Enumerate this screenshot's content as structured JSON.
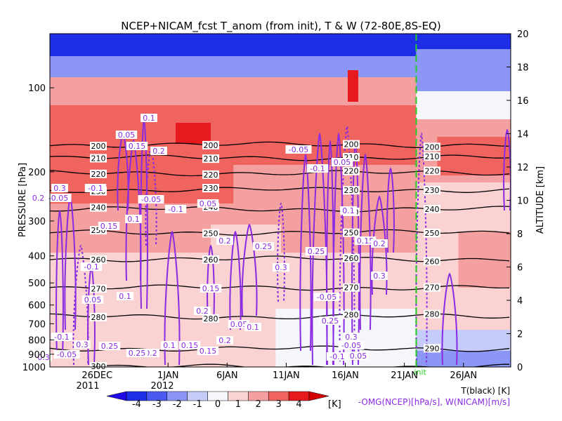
{
  "chart_data": {
    "type": "heatmap",
    "title": "NCEP+NICAM_fcst T_anom (from init), T & W  (72-80E,8S-EQ)",
    "ylabel_left": "PRESSURE [hPa]",
    "ylabel_right": "ALTITUDE [km]",
    "pressure_ticks": [
      "100",
      "200",
      "300",
      "400",
      "500",
      "600",
      "700",
      "800",
      "900",
      "1000"
    ],
    "altitude_ticks": [
      "0",
      "2",
      "4",
      "6",
      "8",
      "10",
      "12",
      "14",
      "16",
      "18",
      "20"
    ],
    "date_ticks": [
      "26DEC",
      "1JAN",
      "6JAN",
      "11JAN",
      "16JAN",
      "21JAN",
      "26JAN"
    ],
    "year_labels": [
      "2011",
      "2012"
    ],
    "init_label": "init",
    "init_date": "2012-01-22",
    "colorbar": {
      "ticks": [
        "-4",
        "-3",
        "-2",
        "-1",
        "0",
        "1",
        "2",
        "3",
        "4"
      ],
      "unit": "[K]",
      "colors": [
        "#1e2ee6",
        "#4a5af0",
        "#8c96f5",
        "#c6ccfa",
        "#f4f6fc",
        "#fad2d2",
        "#f5a0a0",
        "#f0645f",
        "#e6191e"
      ]
    },
    "legend_line1": "T(black) [K]",
    "legend_line2": "-OMG(NCEP)[hPa/s], W(NICAM)[m/s]",
    "temperature_contours": [
      {
        "level": "200",
        "pressure_hPa": 160
      },
      {
        "level": "210",
        "pressure_hPa": 178
      },
      {
        "level": "220",
        "pressure_hPa": 202
      },
      {
        "level": "230",
        "pressure_hPa": 232
      },
      {
        "level": "240",
        "pressure_hPa": 272
      },
      {
        "level": "250",
        "pressure_hPa": 330
      },
      {
        "level": "260",
        "pressure_hPa": 410
      },
      {
        "level": "270",
        "pressure_hPa": 520
      },
      {
        "level": "280",
        "pressure_hPa": 660
      },
      {
        "level": "290",
        "pressure_hPa": 860
      },
      {
        "level": "300",
        "pressure_hPa": 1000
      }
    ],
    "w_contour_labels": [
      "0.05",
      "0.1",
      "0.15",
      "0.2",
      "0.25",
      "0.3",
      "-0.05",
      "-0.1"
    ]
  }
}
